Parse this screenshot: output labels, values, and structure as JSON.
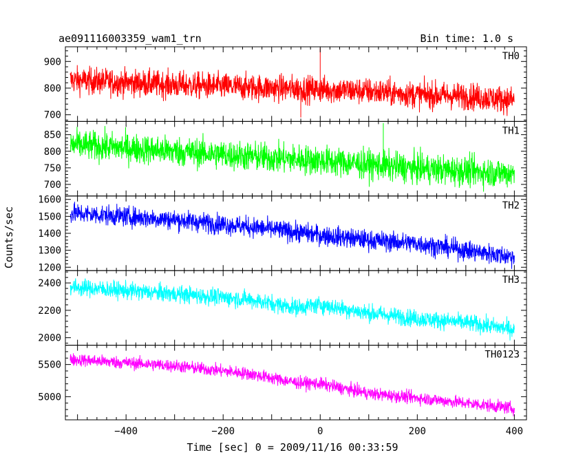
{
  "header": {
    "left_title": "ae091116003359_wam1_trn",
    "right_title": "Bin time: 1.0 s"
  },
  "axes": {
    "ylabel": "Counts/sec",
    "xlabel": "Time [sec] 0 = 2009/11/16 00:33:59"
  },
  "chart_data": {
    "type": "line",
    "title": "ae091116003359_wam1_trn",
    "subtitle": "Bin time: 1.0 s",
    "xlabel": "Time [sec] 0 = 2009/11/16 00:33:59",
    "ylabel": "Counts/sec",
    "x_range": [
      -515,
      400
    ],
    "xlim": [
      -525,
      425
    ],
    "x_ticks": [
      -400,
      -200,
      0,
      200,
      400
    ],
    "x_tick_labels": [
      "−400",
      "−200",
      "0",
      "200",
      "400"
    ],
    "grid": false,
    "panels": [
      {
        "name": "TH0",
        "color": "#ff0000",
        "ylim": [
          675,
          955
        ],
        "y_ticks": [
          700,
          800,
          900
        ],
        "y_tick_labels": [
          "700",
          "800",
          "900"
        ],
        "trend": [
          [
            -515,
            830
          ],
          [
            -300,
            812
          ],
          [
            -100,
            800
          ],
          [
            0,
            795
          ],
          [
            100,
            788
          ],
          [
            200,
            775
          ],
          [
            300,
            770
          ],
          [
            400,
            755
          ]
        ],
        "noise": 36,
        "spikes": [
          [
            0,
            950
          ],
          [
            -40,
            690
          ]
        ]
      },
      {
        "name": "TH1",
        "color": "#00ff00",
        "ylim": [
          665,
          890
        ],
        "y_ticks": [
          700,
          750,
          800,
          850
        ],
        "y_tick_labels": [
          "700",
          "750",
          "800",
          "850"
        ],
        "trend": [
          [
            -515,
            820
          ],
          [
            -300,
            800
          ],
          [
            -100,
            780
          ],
          [
            0,
            772
          ],
          [
            100,
            760
          ],
          [
            200,
            748
          ],
          [
            300,
            740
          ],
          [
            400,
            733
          ]
        ],
        "noise": 32,
        "spikes": [
          [
            130,
            885
          ]
        ]
      },
      {
        "name": "TH2",
        "color": "#0000ff",
        "ylim": [
          1180,
          1620
        ],
        "y_ticks": [
          1200,
          1300,
          1400,
          1500,
          1600
        ],
        "y_tick_labels": [
          "1200",
          "1300",
          "1400",
          "1500",
          "1600"
        ],
        "trend": [
          [
            -515,
            1520
          ],
          [
            -300,
            1480
          ],
          [
            -150,
            1440
          ],
          [
            0,
            1390
          ],
          [
            100,
            1360
          ],
          [
            200,
            1340
          ],
          [
            300,
            1300
          ],
          [
            400,
            1260
          ]
        ],
        "noise": 42,
        "spikes": []
      },
      {
        "name": "TH3",
        "color": "#00ffff",
        "ylim": [
          1945,
          2490
        ],
        "y_ticks": [
          2000,
          2200,
          2400
        ],
        "y_tick_labels": [
          "2000",
          "2200",
          "2400"
        ],
        "trend": [
          [
            -515,
            2370
          ],
          [
            -300,
            2320
          ],
          [
            -150,
            2280
          ],
          [
            -50,
            2220
          ],
          [
            0,
            2240
          ],
          [
            100,
            2180
          ],
          [
            200,
            2140
          ],
          [
            300,
            2110
          ],
          [
            400,
            2060
          ]
        ],
        "noise": 45,
        "spikes": []
      },
      {
        "name": "TH0123",
        "color": "#ff00ff",
        "ylim": [
          4640,
          5800
        ],
        "y_ticks": [
          5000,
          5500
        ],
        "y_tick_labels": [
          "5000",
          "5500"
        ],
        "trend": [
          [
            -515,
            5580
          ],
          [
            -300,
            5480
          ],
          [
            -150,
            5360
          ],
          [
            -50,
            5220
          ],
          [
            0,
            5200
          ],
          [
            100,
            5050
          ],
          [
            200,
            4980
          ],
          [
            300,
            4900
          ],
          [
            400,
            4820
          ]
        ],
        "noise": 70,
        "spikes": []
      }
    ]
  }
}
